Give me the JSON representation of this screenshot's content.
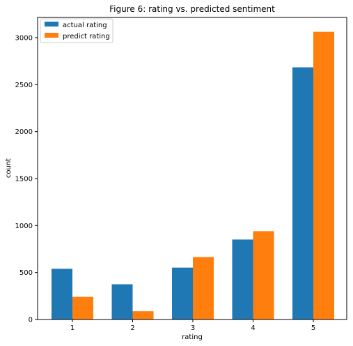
{
  "chart_data": {
    "type": "bar",
    "title": "Figure 6: rating vs. predicted sentiment",
    "xlabel": "rating",
    "ylabel": "count",
    "categories": [
      "1",
      "2",
      "3",
      "4",
      "5"
    ],
    "series": [
      {
        "name": "actual rating",
        "color": "#1f77b4",
        "values": [
          540,
          375,
          552,
          851,
          2684
        ]
      },
      {
        "name": "predict rating",
        "color": "#ff7f0e",
        "values": [
          241,
          88,
          665,
          940,
          3062
        ]
      }
    ],
    "ylim": [
      0,
      3215
    ],
    "yticks": [
      0,
      500,
      1000,
      1500,
      2000,
      2500,
      3000
    ],
    "grid": false,
    "legend_position": "top-left"
  }
}
